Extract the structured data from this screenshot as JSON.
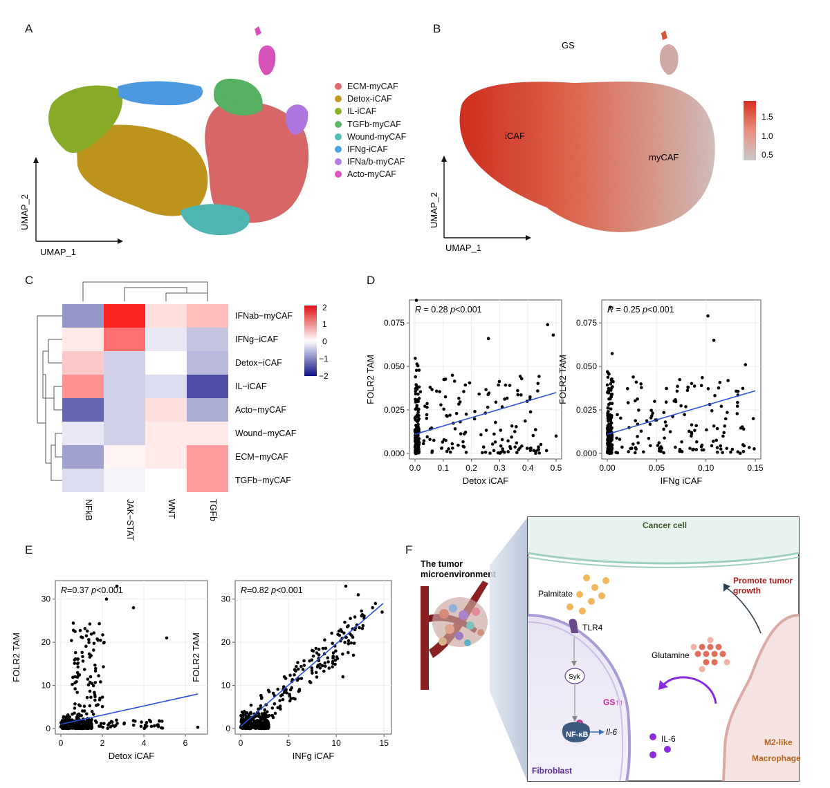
{
  "panels": {
    "A": "A",
    "B": "B",
    "C": "C",
    "D": "D",
    "E": "E",
    "F": "F"
  },
  "panelA": {
    "xaxis": "UMAP_1",
    "yaxis": "UMAP_2",
    "legend": [
      {
        "label": "ECM-myCAF",
        "color": "#e06a6a"
      },
      {
        "label": "Detox-iCAF",
        "color": "#c49a1e"
      },
      {
        "label": "IL-iCAF",
        "color": "#8db22a"
      },
      {
        "label": "TGFb-myCAF",
        "color": "#5ab866"
      },
      {
        "label": "Wound-myCAF",
        "color": "#52bcb8"
      },
      {
        "label": "IFNg-iCAF",
        "color": "#4f9fe8"
      },
      {
        "label": "IFNa/b-myCAF",
        "color": "#b57be8"
      },
      {
        "label": "Acto-myCAF",
        "color": "#e055c0"
      }
    ]
  },
  "panelB": {
    "title": "GS",
    "xaxis": "UMAP_1",
    "yaxis": "UMAP_2",
    "label_icaf": "iCAF",
    "label_mycaf": "myCAF",
    "scale_ticks": [
      "1.5",
      "1.0",
      "0.5"
    ],
    "color_high": "#d7301f",
    "color_low": "#c8c8c8"
  },
  "panelC": {
    "rows": [
      "IFNab−myCAF",
      "IFNg−iCAF",
      "Detox−iCAF",
      "IL−iCAF",
      "Acto−myCAF",
      "Wound−myCAF",
      "ECM−myCAF",
      "TGFb−myCAF"
    ],
    "cols": [
      "NFkB",
      "JAK−STAT",
      "WNT",
      "TGFb"
    ],
    "values": [
      [
        -0.9,
        2.0,
        0.3,
        0.6
      ],
      [
        0.2,
        1.3,
        -0.2,
        -0.5
      ],
      [
        0.5,
        -0.4,
        0.0,
        -0.6
      ],
      [
        1.0,
        -0.4,
        -0.3,
        -1.5
      ],
      [
        -1.3,
        -0.4,
        0.3,
        -0.7
      ],
      [
        -0.2,
        -0.4,
        0.2,
        0.2
      ],
      [
        -0.8,
        0.1,
        0.2,
        0.9
      ],
      [
        -0.3,
        -0.1,
        0.0,
        0.9
      ]
    ],
    "scale_ticks": [
      "2",
      "1",
      "0",
      "−1",
      "−2"
    ]
  },
  "panelD": {
    "plots": [
      {
        "stat_r": "R",
        "stat_text": " = 0.28 ",
        "stat_p": "p",
        "stat_tail": "<0.001",
        "xlabel": "Detox iCAF",
        "ylabel": "FOLR2 TAM",
        "xticks": [
          "0.0",
          "0.1",
          "0.2",
          "0.3",
          "0.4",
          "0.5"
        ],
        "yticks": [
          "0.000",
          "0.025",
          "0.050",
          "0.075"
        ],
        "xlim": [
          0,
          0.5
        ],
        "ylim": [
          0,
          0.085
        ],
        "fit": [
          [
            0,
            0.011
          ],
          [
            0.5,
            0.035
          ]
        ]
      },
      {
        "stat_r": "R",
        "stat_text": " = 0.25 ",
        "stat_p": "p",
        "stat_tail": "<0.001",
        "xlabel": "IFNg iCAF",
        "ylabel": "FOLR2  TAM",
        "xticks": [
          "0.00",
          "0.05",
          "0.10",
          "0.15"
        ],
        "yticks": [
          "0.000",
          "0.025",
          "0.050",
          "0.075"
        ],
        "xlim": [
          0,
          0.15
        ],
        "ylim": [
          0,
          0.085
        ],
        "fit": [
          [
            0,
            0.011
          ],
          [
            0.15,
            0.036
          ]
        ]
      }
    ]
  },
  "panelE": {
    "plots": [
      {
        "stat_r": "R",
        "stat_text": "=0.37  ",
        "stat_p": "p",
        "stat_tail": "<0.001",
        "xlabel": "Detox iCAF",
        "ylabel": "FOLR2 TAM",
        "xticks": [
          "0",
          "2",
          "4",
          "6"
        ],
        "yticks": [
          "0",
          "10",
          "20",
          "30"
        ],
        "xlim": [
          0,
          6.8
        ],
        "ylim": [
          0,
          33
        ],
        "fit": [
          [
            0,
            1.0
          ],
          [
            6.6,
            8.0
          ]
        ]
      },
      {
        "stat_r": "R",
        "stat_text": "=0.82  ",
        "stat_p": "p",
        "stat_tail": "<0.001",
        "xlabel": "INFg iCAF",
        "ylabel": "FOLR2 TAM",
        "xticks": [
          "0",
          "5",
          "10",
          "15"
        ],
        "yticks": [
          "0",
          "10",
          "20",
          "30"
        ],
        "xlim": [
          0,
          15.2
        ],
        "ylim": [
          0,
          33
        ],
        "fit": [
          [
            0,
            0.5
          ],
          [
            14.9,
            29.0
          ]
        ]
      }
    ]
  },
  "panelF": {
    "tme_title": "The tumor\nmicroenvironment",
    "cancer_cell": "Cancer cell",
    "palmitate": "Palmitate",
    "tlr4": "TLR4",
    "syk": "Syk",
    "p": "P",
    "nfkb": "NF-κB",
    "il6_gene": "Il-6",
    "gs": "GS↑↑",
    "il6": "IL-6",
    "glutamine": "Glutamine",
    "promote": "Promote tumor\ngrowth",
    "fibroblast": "Fibroblast",
    "m2": "M2-like",
    "macrophage": "Macrophage"
  }
}
